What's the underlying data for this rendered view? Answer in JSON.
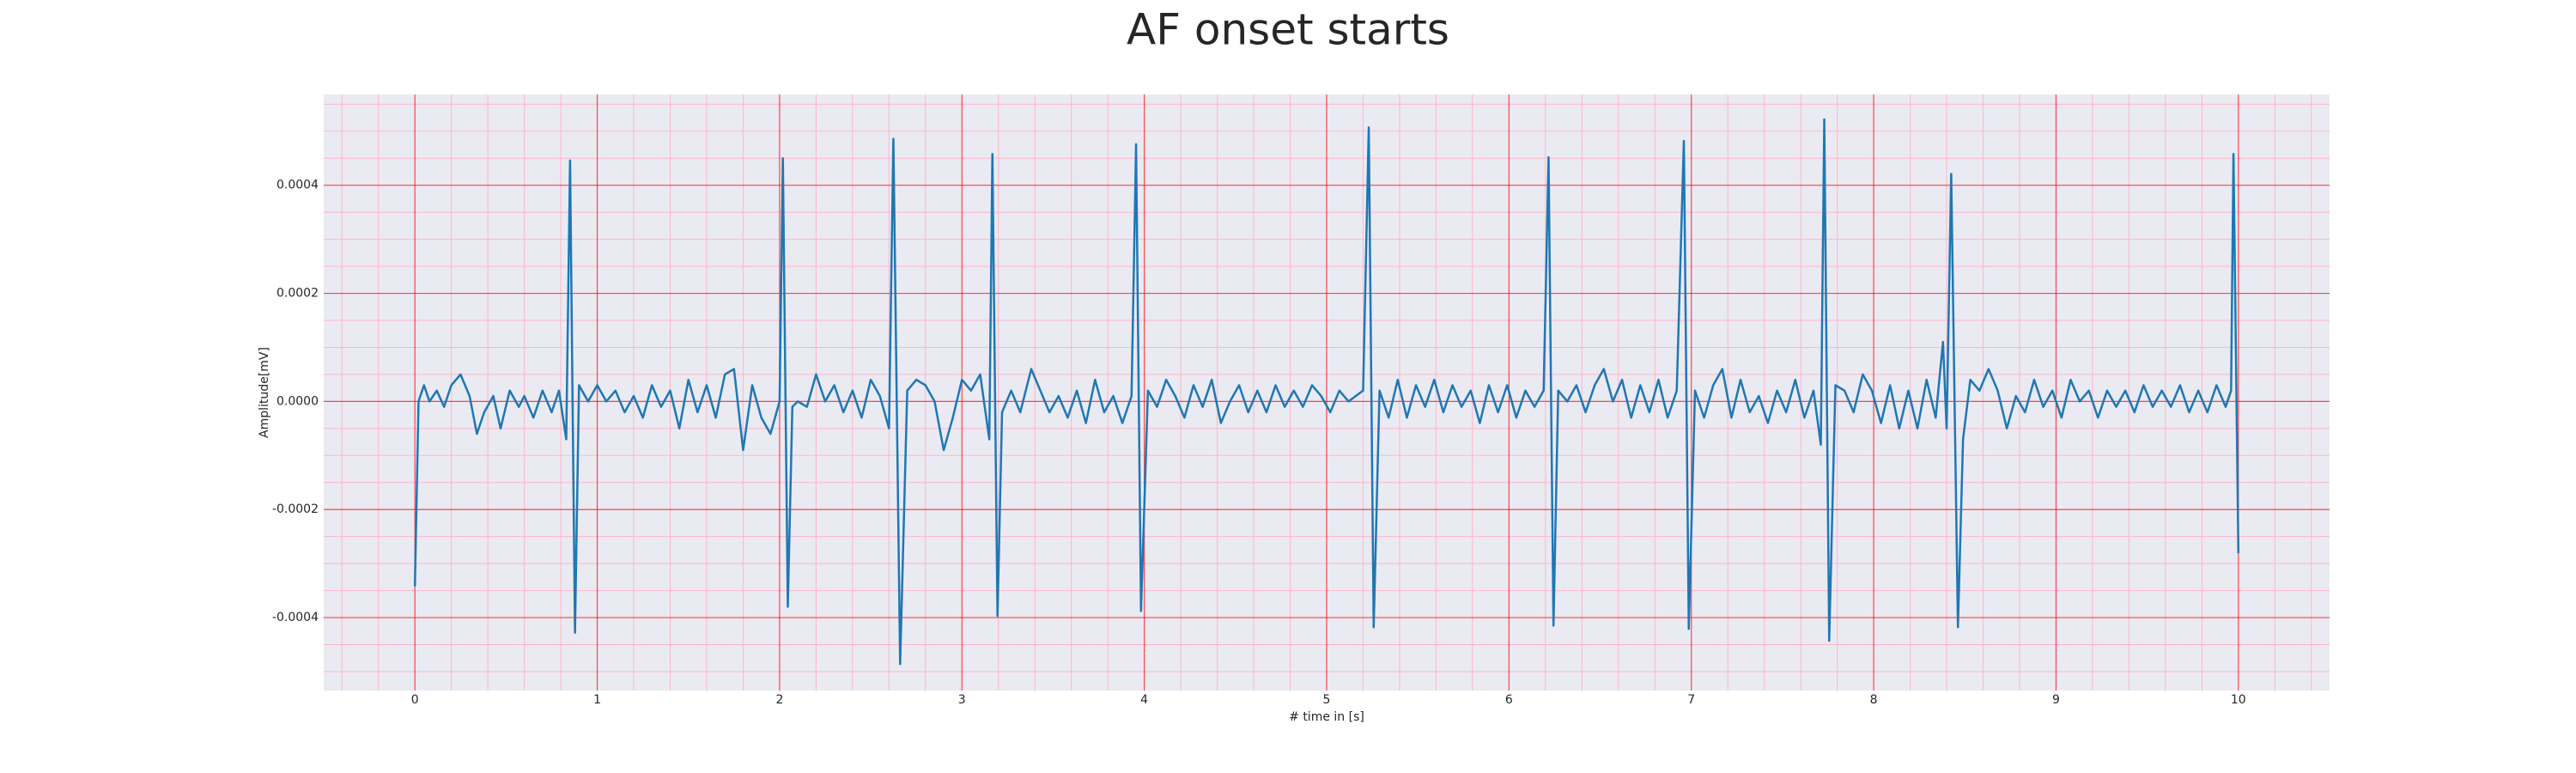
{
  "chart_data": {
    "type": "line",
    "title": "AF onset starts",
    "xlabel": "# time in [s]",
    "ylabel": "Amplitude[mV]",
    "xlim": [
      -0.5,
      10.5
    ],
    "ylim": [
      -0.000535,
      0.000568
    ],
    "xticks": [
      0,
      1,
      2,
      3,
      4,
      5,
      6,
      7,
      8,
      9,
      10
    ],
    "yticks": [
      -0.0004,
      -0.0002,
      {
        "value": 0,
        "label": "0.0000"
      },
      0.0002,
      0.0004
    ],
    "xminorticks": [
      -0.4,
      -0.2,
      0.2,
      0.4,
      0.6,
      0.8,
      1.2,
      1.4,
      1.6,
      1.8,
      2.2,
      2.4,
      2.6,
      2.8,
      3.2,
      3.4,
      3.6,
      3.8,
      4.2,
      4.4,
      4.6,
      4.8,
      5.2,
      5.4,
      5.6,
      5.8,
      6.2,
      6.4,
      6.6,
      6.8,
      7.2,
      7.4,
      7.6,
      7.8,
      8.2,
      8.4,
      8.6,
      8.8,
      9.2,
      9.4,
      9.6,
      9.8,
      10.2,
      10.4
    ],
    "yminorticks": [
      -0.0005,
      -0.00045,
      -0.00035,
      -0.0003,
      -0.00025,
      -0.00015,
      -0.0001,
      -5e-05,
      5e-05,
      0.0001,
      0.00015,
      0.00025,
      0.0003,
      0.00035,
      0.00045,
      0.0005,
      0.00055
    ],
    "grid": true,
    "grid_color": "#ff0000",
    "minor_grid_color": "#ffb6c8",
    "background": "#eaeaf2",
    "x": [
      0,
      0.02,
      0.05,
      0.08,
      0.12,
      0.16,
      0.2,
      0.25,
      0.3,
      0.34,
      0.38,
      0.43,
      0.47,
      0.52,
      0.57,
      0.6,
      0.65,
      0.7,
      0.75,
      0.79,
      0.83,
      0.851,
      0.878,
      0.9,
      0.95,
      1.0,
      1.05,
      1.1,
      1.15,
      1.2,
      1.25,
      1.3,
      1.35,
      1.4,
      1.45,
      1.5,
      1.55,
      1.6,
      1.65,
      1.7,
      1.75,
      1.8,
      1.85,
      1.9,
      1.95,
      2.0,
      2.018,
      2.045,
      2.07,
      2.1,
      2.15,
      2.2,
      2.25,
      2.3,
      2.35,
      2.4,
      2.45,
      2.5,
      2.55,
      2.6,
      2.624,
      2.661,
      2.7,
      2.75,
      2.8,
      2.85,
      2.9,
      2.95,
      3.0,
      3.05,
      3.1,
      3.15,
      3.167,
      3.195,
      3.22,
      3.27,
      3.32,
      3.38,
      3.43,
      3.48,
      3.53,
      3.58,
      3.63,
      3.68,
      3.73,
      3.78,
      3.83,
      3.88,
      3.93,
      3.955,
      3.982,
      4.02,
      4.07,
      4.12,
      4.17,
      4.22,
      4.27,
      4.32,
      4.37,
      4.42,
      4.47,
      4.52,
      4.57,
      4.62,
      4.67,
      4.72,
      4.77,
      4.82,
      4.87,
      4.92,
      4.97,
      5.02,
      5.07,
      5.12,
      5.2,
      5.231,
      5.258,
      5.29,
      5.34,
      5.39,
      5.44,
      5.49,
      5.54,
      5.59,
      5.64,
      5.69,
      5.74,
      5.79,
      5.84,
      5.89,
      5.94,
      5.99,
      6.04,
      6.09,
      6.14,
      6.19,
      6.217,
      6.244,
      6.27,
      6.32,
      6.37,
      6.42,
      6.47,
      6.52,
      6.57,
      6.62,
      6.67,
      6.72,
      6.77,
      6.82,
      6.87,
      6.92,
      6.959,
      6.986,
      7.02,
      7.07,
      7.12,
      7.17,
      7.22,
      7.27,
      7.32,
      7.37,
      7.42,
      7.47,
      7.52,
      7.57,
      7.62,
      7.67,
      7.71,
      7.729,
      7.756,
      7.79,
      7.84,
      7.89,
      7.94,
      7.99,
      8.04,
      8.09,
      8.14,
      8.19,
      8.24,
      8.29,
      8.34,
      8.38,
      8.4,
      8.425,
      8.462,
      8.49,
      8.53,
      8.58,
      8.63,
      8.68,
      8.73,
      8.78,
      8.83,
      8.88,
      8.93,
      8.98,
      9.03,
      9.08,
      9.13,
      9.18,
      9.23,
      9.28,
      9.33,
      9.38,
      9.43,
      9.48,
      9.53,
      9.58,
      9.63,
      9.68,
      9.73,
      9.78,
      9.83,
      9.88,
      9.93,
      9.96,
      9.973,
      10.0
    ],
    "series": [
      {
        "color": "#1f77b4",
        "values": [
          -0.000342,
          0,
          3e-05,
          0,
          2e-05,
          -1e-05,
          3e-05,
          5e-05,
          1e-05,
          -6e-05,
          -2e-05,
          1e-05,
          -5e-05,
          2e-05,
          -1e-05,
          1e-05,
          -3e-05,
          2e-05,
          -2e-05,
          2e-05,
          -7e-05,
          0.000446,
          -0.000428,
          3e-05,
          0,
          3e-05,
          0,
          2e-05,
          -2e-05,
          1e-05,
          -3e-05,
          3e-05,
          -1e-05,
          2e-05,
          -5e-05,
          4e-05,
          -2e-05,
          3e-05,
          -3e-05,
          5e-05,
          6e-05,
          -9e-05,
          3e-05,
          -3e-05,
          -6e-05,
          0,
          0.00045,
          -0.00038,
          -1e-05,
          0,
          -1e-05,
          5e-05,
          0,
          3e-05,
          -2e-05,
          2e-05,
          -3e-05,
          4e-05,
          1e-05,
          -5e-05,
          0.000486,
          -0.000486,
          2e-05,
          4e-05,
          3e-05,
          0,
          -9e-05,
          -3e-05,
          4e-05,
          2e-05,
          5e-05,
          -7e-05,
          0.000458,
          -0.000397,
          -2e-05,
          2e-05,
          -2e-05,
          6e-05,
          2e-05,
          -2e-05,
          1e-05,
          -3e-05,
          2e-05,
          -4e-05,
          4e-05,
          -2e-05,
          1e-05,
          -4e-05,
          1e-05,
          0.000476,
          -0.000388,
          2e-05,
          -1e-05,
          4e-05,
          1e-05,
          -3e-05,
          3e-05,
          -1e-05,
          4e-05,
          -4e-05,
          0,
          3e-05,
          -2e-05,
          2e-05,
          -2e-05,
          3e-05,
          -1e-05,
          2e-05,
          -1e-05,
          3e-05,
          1e-05,
          -2e-05,
          2e-05,
          0,
          2e-05,
          0.000507,
          -0.000418,
          2e-05,
          -3e-05,
          4e-05,
          -3e-05,
          3e-05,
          -1e-05,
          4e-05,
          -2e-05,
          3e-05,
          -1e-05,
          2e-05,
          -4e-05,
          3e-05,
          -2e-05,
          3e-05,
          -3e-05,
          2e-05,
          -1e-05,
          2e-05,
          0.000452,
          -0.000415,
          2e-05,
          0,
          3e-05,
          -2e-05,
          3e-05,
          6e-05,
          0,
          4e-05,
          -3e-05,
          3e-05,
          -2e-05,
          4e-05,
          -3e-05,
          2e-05,
          0.000482,
          -0.000421,
          2e-05,
          -3e-05,
          3e-05,
          6e-05,
          -3e-05,
          4e-05,
          -2e-05,
          1e-05,
          -4e-05,
          2e-05,
          -2e-05,
          4e-05,
          -3e-05,
          2e-05,
          -8e-05,
          0.000522,
          -0.000443,
          3e-05,
          2e-05,
          -2e-05,
          5e-05,
          2e-05,
          -4e-05,
          3e-05,
          -5e-05,
          2e-05,
          -5e-05,
          4e-05,
          -3e-05,
          0.00011,
          -5e-05,
          0.000421,
          -0.000418,
          -7e-05,
          4e-05,
          2e-05,
          6e-05,
          2e-05,
          -5e-05,
          1e-05,
          -2e-05,
          4e-05,
          -1e-05,
          2e-05,
          -3e-05,
          4e-05,
          0,
          2e-05,
          -3e-05,
          2e-05,
          -1e-05,
          2e-05,
          -2e-05,
          3e-05,
          -1e-05,
          2e-05,
          -1e-05,
          3e-05,
          -2e-05,
          2e-05,
          -2e-05,
          3e-05,
          -1e-05,
          2e-05,
          0.000458,
          -0.000281
        ]
      }
    ]
  }
}
